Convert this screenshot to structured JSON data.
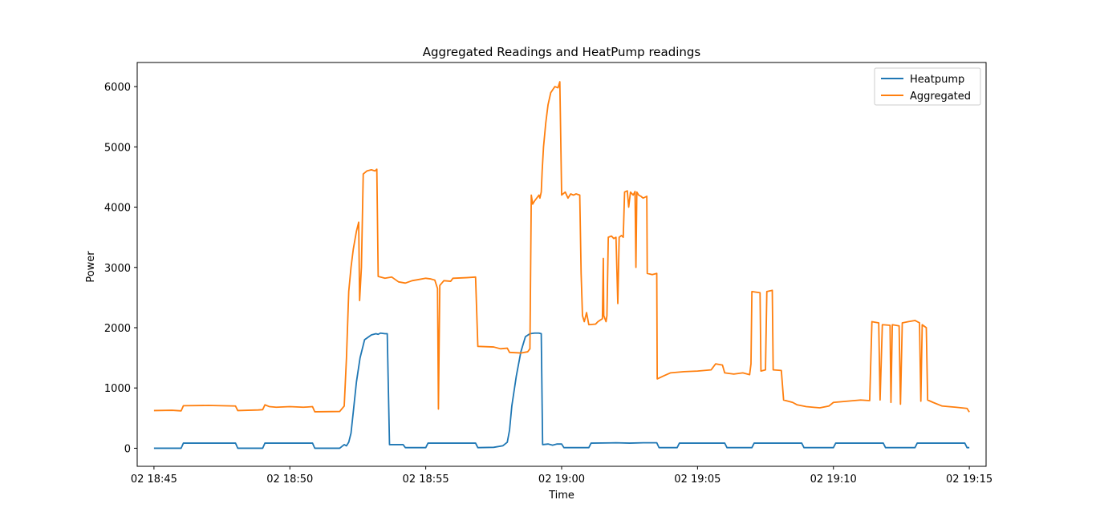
{
  "chart_data": {
    "type": "line",
    "title": "Aggregated Readings and HeatPump readings",
    "xlabel": "Time",
    "ylabel": "Power",
    "xlim": [
      "02 18:44:23",
      "02 19:15:37"
    ],
    "ylim": [
      -300,
      6400
    ],
    "x_ticks": [
      "02 18:45",
      "02 18:50",
      "02 18:55",
      "02 19:00",
      "02 19:05",
      "02 19:10",
      "02 19:15"
    ],
    "y_ticks": [
      0,
      1000,
      2000,
      3000,
      4000,
      5000,
      6000
    ],
    "grid": false,
    "legend_position": "top-right",
    "series": [
      {
        "name": "Heatpump",
        "color": "#1f77b4",
        "points": [
          [
            "02 18:45:00",
            0
          ],
          [
            "02 18:46:00",
            0
          ],
          [
            "02 18:46:05",
            85
          ],
          [
            "02 18:48:00",
            85
          ],
          [
            "02 18:48:05",
            0
          ],
          [
            "02 18:49:00",
            0
          ],
          [
            "02 18:49:05",
            85
          ],
          [
            "02 18:50:50",
            85
          ],
          [
            "02 18:50:55",
            0
          ],
          [
            "02 18:51:50",
            0
          ],
          [
            "02 18:52:00",
            60
          ],
          [
            "02 18:52:05",
            40
          ],
          [
            "02 18:52:10",
            100
          ],
          [
            "02 18:52:15",
            250
          ],
          [
            "02 18:52:20",
            600
          ],
          [
            "02 18:52:27",
            1100
          ],
          [
            "02 18:52:35",
            1500
          ],
          [
            "02 18:52:45",
            1800
          ],
          [
            "02 18:53:00",
            1880
          ],
          [
            "02 18:53:10",
            1900
          ],
          [
            "02 18:53:15",
            1890
          ],
          [
            "02 18:53:20",
            1910
          ],
          [
            "02 18:53:25",
            1905
          ],
          [
            "02 18:53:30",
            1900
          ],
          [
            "02 18:53:35",
            1900
          ],
          [
            "02 18:53:40",
            60
          ],
          [
            "02 18:54:10",
            60
          ],
          [
            "02 18:54:15",
            10
          ],
          [
            "02 18:55:00",
            10
          ],
          [
            "02 18:55:05",
            85
          ],
          [
            "02 18:56:50",
            85
          ],
          [
            "02 18:56:55",
            10
          ],
          [
            "02 18:57:30",
            15
          ],
          [
            "02 18:57:50",
            40
          ],
          [
            "02 18:58:00",
            100
          ],
          [
            "02 18:58:05",
            300
          ],
          [
            "02 18:58:10",
            700
          ],
          [
            "02 18:58:20",
            1200
          ],
          [
            "02 18:58:30",
            1600
          ],
          [
            "02 18:58:40",
            1850
          ],
          [
            "02 18:58:50",
            1900
          ],
          [
            "02 18:59:00",
            1910
          ],
          [
            "02 18:59:10",
            1910
          ],
          [
            "02 18:59:15",
            1900
          ],
          [
            "02 18:59:18",
            60
          ],
          [
            "02 18:59:30",
            70
          ],
          [
            "02 18:59:40",
            50
          ],
          [
            "02 18:59:50",
            70
          ],
          [
            "02 19:00:00",
            70
          ],
          [
            "02 19:00:05",
            10
          ],
          [
            "02 19:01:00",
            10
          ],
          [
            "02 19:01:05",
            85
          ],
          [
            "02 19:02:00",
            90
          ],
          [
            "02 19:02:30",
            85
          ],
          [
            "02 19:03:00",
            90
          ],
          [
            "02 19:03:30",
            90
          ],
          [
            "02 19:03:35",
            10
          ],
          [
            "02 19:04:15",
            10
          ],
          [
            "02 19:04:20",
            85
          ],
          [
            "02 19:06:00",
            85
          ],
          [
            "02 19:06:05",
            10
          ],
          [
            "02 19:07:00",
            10
          ],
          [
            "02 19:07:05",
            85
          ],
          [
            "02 19:08:50",
            85
          ],
          [
            "02 19:08:55",
            10
          ],
          [
            "02 19:10:00",
            10
          ],
          [
            "02 19:10:05",
            85
          ],
          [
            "02 19:11:50",
            85
          ],
          [
            "02 19:11:55",
            10
          ],
          [
            "02 19:13:00",
            10
          ],
          [
            "02 19:13:05",
            85
          ],
          [
            "02 19:14:50",
            85
          ],
          [
            "02 19:14:55",
            10
          ],
          [
            "02 19:15:00",
            10
          ]
        ]
      },
      {
        "name": "Aggregated",
        "color": "#ff7f0e",
        "points": [
          [
            "02 18:45:00",
            625
          ],
          [
            "02 18:45:40",
            630
          ],
          [
            "02 18:46:00",
            620
          ],
          [
            "02 18:46:05",
            705
          ],
          [
            "02 18:47:00",
            710
          ],
          [
            "02 18:48:00",
            700
          ],
          [
            "02 18:48:05",
            625
          ],
          [
            "02 18:48:50",
            635
          ],
          [
            "02 18:49:00",
            640
          ],
          [
            "02 18:49:05",
            720
          ],
          [
            "02 18:49:15",
            690
          ],
          [
            "02 18:49:30",
            680
          ],
          [
            "02 18:50:00",
            690
          ],
          [
            "02 18:50:30",
            680
          ],
          [
            "02 18:50:50",
            690
          ],
          [
            "02 18:50:55",
            605
          ],
          [
            "02 18:51:50",
            610
          ],
          [
            "02 18:52:00",
            700
          ],
          [
            "02 18:52:05",
            1500
          ],
          [
            "02 18:52:10",
            2600
          ],
          [
            "02 18:52:15",
            3000
          ],
          [
            "02 18:52:20",
            3300
          ],
          [
            "02 18:52:27",
            3600
          ],
          [
            "02 18:52:32",
            3750
          ],
          [
            "02 18:52:34",
            2450
          ],
          [
            "02 18:52:38",
            3000
          ],
          [
            "02 18:52:42",
            4550
          ],
          [
            "02 18:52:50",
            4600
          ],
          [
            "02 18:53:00",
            4620
          ],
          [
            "02 18:53:08",
            4600
          ],
          [
            "02 18:53:12",
            4630
          ],
          [
            "02 18:53:15",
            2850
          ],
          [
            "02 18:53:30",
            2820
          ],
          [
            "02 18:53:45",
            2840
          ],
          [
            "02 18:54:00",
            2760
          ],
          [
            "02 18:54:15",
            2740
          ],
          [
            "02 18:54:30",
            2780
          ],
          [
            "02 18:54:45",
            2800
          ],
          [
            "02 18:55:00",
            2820
          ],
          [
            "02 18:55:10",
            2810
          ],
          [
            "02 18:55:20",
            2790
          ],
          [
            "02 18:55:26",
            2650
          ],
          [
            "02 18:55:28",
            650
          ],
          [
            "02 18:55:31",
            2700
          ],
          [
            "02 18:55:40",
            2780
          ],
          [
            "02 18:55:55",
            2770
          ],
          [
            "02 18:56:00",
            2820
          ],
          [
            "02 18:56:30",
            2830
          ],
          [
            "02 18:56:50",
            2840
          ],
          [
            "02 18:56:55",
            1690
          ],
          [
            "02 18:57:30",
            1680
          ],
          [
            "02 18:57:45",
            1650
          ],
          [
            "02 18:58:00",
            1660
          ],
          [
            "02 18:58:05",
            1590
          ],
          [
            "02 18:58:30",
            1580
          ],
          [
            "02 18:58:45",
            1600
          ],
          [
            "02 18:58:50",
            1650
          ],
          [
            "02 18:58:53",
            4200
          ],
          [
            "02 18:58:56",
            4050
          ],
          [
            "02 18:59:00",
            4100
          ],
          [
            "02 18:59:10",
            4200
          ],
          [
            "02 18:59:12",
            4150
          ],
          [
            "02 18:59:15",
            4250
          ],
          [
            "02 18:59:17",
            4600
          ],
          [
            "02 18:59:20",
            5000
          ],
          [
            "02 18:59:25",
            5400
          ],
          [
            "02 18:59:30",
            5700
          ],
          [
            "02 18:59:36",
            5900
          ],
          [
            "02 18:59:45",
            6000
          ],
          [
            "02 18:59:52",
            5980
          ],
          [
            "02 18:59:56",
            6080
          ],
          [
            "02 19:00:00",
            4200
          ],
          [
            "02 19:00:08",
            4250
          ],
          [
            "02 19:00:14",
            4150
          ],
          [
            "02 19:00:20",
            4220
          ],
          [
            "02 19:00:26",
            4200
          ],
          [
            "02 19:00:32",
            4220
          ],
          [
            "02 19:00:40",
            4200
          ],
          [
            "02 19:00:43",
            2900
          ],
          [
            "02 19:00:46",
            2200
          ],
          [
            "02 19:00:50",
            2100
          ],
          [
            "02 19:00:55",
            2250
          ],
          [
            "02 19:01:00",
            2050
          ],
          [
            "02 19:01:15",
            2060
          ],
          [
            "02 19:01:20",
            2100
          ],
          [
            "02 19:01:30",
            2150
          ],
          [
            "02 19:01:32",
            3150
          ],
          [
            "02 19:01:33",
            2200
          ],
          [
            "02 19:01:38",
            2100
          ],
          [
            "02 19:01:40",
            2200
          ],
          [
            "02 19:01:43",
            3500
          ],
          [
            "02 19:01:50",
            3520
          ],
          [
            "02 19:01:55",
            3480
          ],
          [
            "02 19:02:00",
            3500
          ],
          [
            "02 19:02:04",
            2400
          ],
          [
            "02 19:02:07",
            3500
          ],
          [
            "02 19:02:12",
            3530
          ],
          [
            "02 19:02:16",
            3500
          ],
          [
            "02 19:02:19",
            4250
          ],
          [
            "02 19:02:25",
            4270
          ],
          [
            "02 19:02:28",
            4000
          ],
          [
            "02 19:02:32",
            4250
          ],
          [
            "02 19:02:38",
            4200
          ],
          [
            "02 19:02:42",
            4260
          ],
          [
            "02 19:02:44",
            3000
          ],
          [
            "02 19:02:46",
            4250
          ],
          [
            "02 19:02:50",
            4200
          ],
          [
            "02 19:02:55",
            4180
          ],
          [
            "02 19:03:00",
            4150
          ],
          [
            "02 19:03:08",
            4180
          ],
          [
            "02 19:03:09",
            2900
          ],
          [
            "02 19:03:20",
            2880
          ],
          [
            "02 19:03:30",
            2900
          ],
          [
            "02 19:03:31",
            1150
          ],
          [
            "02 19:03:45",
            1200
          ],
          [
            "02 19:04:00",
            1250
          ],
          [
            "02 19:04:30",
            1270
          ],
          [
            "02 19:05:00",
            1280
          ],
          [
            "02 19:05:30",
            1300
          ],
          [
            "02 19:05:40",
            1400
          ],
          [
            "02 19:05:55",
            1380
          ],
          [
            "02 19:06:00",
            1250
          ],
          [
            "02 19:06:20",
            1230
          ],
          [
            "02 19:06:40",
            1250
          ],
          [
            "02 19:06:55",
            1220
          ],
          [
            "02 19:06:58",
            1400
          ],
          [
            "02 19:07:00",
            2600
          ],
          [
            "02 19:07:18",
            2580
          ],
          [
            "02 19:07:20",
            1280
          ],
          [
            "02 19:07:30",
            1300
          ],
          [
            "02 19:07:33",
            2600
          ],
          [
            "02 19:07:45",
            2620
          ],
          [
            "02 19:07:47",
            1300
          ],
          [
            "02 19:08:05",
            1290
          ],
          [
            "02 19:08:10",
            800
          ],
          [
            "02 19:08:30",
            760
          ],
          [
            "02 19:08:40",
            720
          ],
          [
            "02 19:09:00",
            690
          ],
          [
            "02 19:09:30",
            670
          ],
          [
            "02 19:09:50",
            700
          ],
          [
            "02 19:10:00",
            760
          ],
          [
            "02 19:10:30",
            780
          ],
          [
            "02 19:11:00",
            800
          ],
          [
            "02 19:11:20",
            790
          ],
          [
            "02 19:11:25",
            2100
          ],
          [
            "02 19:11:40",
            2080
          ],
          [
            "02 19:11:43",
            800
          ],
          [
            "02 19:11:48",
            2050
          ],
          [
            "02 19:12:05",
            2040
          ],
          [
            "02 19:12:07",
            760
          ],
          [
            "02 19:12:10",
            2050
          ],
          [
            "02 19:12:25",
            2030
          ],
          [
            "02 19:12:28",
            730
          ],
          [
            "02 19:12:32",
            2080
          ],
          [
            "02 19:12:45",
            2100
          ],
          [
            "02 19:13:00",
            2120
          ],
          [
            "02 19:13:10",
            2080
          ],
          [
            "02 19:13:13",
            780
          ],
          [
            "02 19:13:16",
            2050
          ],
          [
            "02 19:13:25",
            2000
          ],
          [
            "02 19:13:28",
            800
          ],
          [
            "02 19:13:40",
            760
          ],
          [
            "02 19:14:00",
            700
          ],
          [
            "02 19:14:30",
            680
          ],
          [
            "02 19:14:55",
            660
          ],
          [
            "02 19:15:00",
            600
          ]
        ]
      }
    ]
  }
}
